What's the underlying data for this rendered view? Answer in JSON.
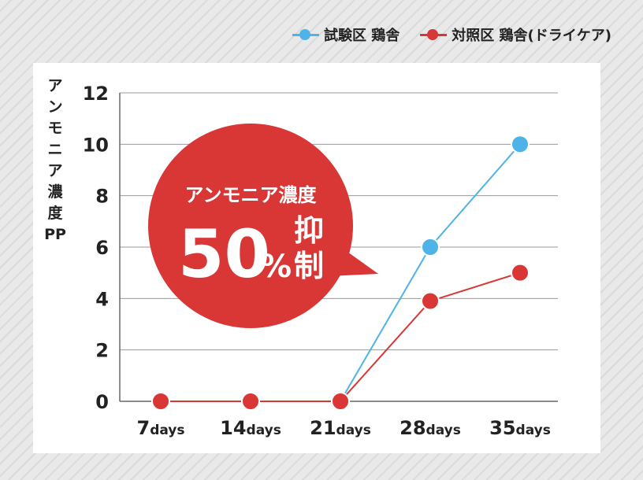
{
  "legend": {
    "test_label": "試験区 鶏舎",
    "control_label": "対照区 鶏舎(ドライケア)"
  },
  "callout": {
    "line1": "アンモニア濃度",
    "big": "50",
    "percent": "%",
    "suffix_top": "抑",
    "suffix_bottom": "制",
    "color": "#d93636"
  },
  "chart_data": {
    "type": "line",
    "categories": [
      {
        "num": "7",
        "unit": "days"
      },
      {
        "num": "14",
        "unit": "days"
      },
      {
        "num": "21",
        "unit": "days"
      },
      {
        "num": "28",
        "unit": "days"
      },
      {
        "num": "35",
        "unit": "days"
      }
    ],
    "ylabel": "アンモニア濃度PP",
    "ylim": [
      0,
      12
    ],
    "yticks": [
      0,
      2,
      4,
      6,
      8,
      10,
      12
    ],
    "grid": true,
    "legend_position": "top-right",
    "series": [
      {
        "name": "試験区 鶏舎",
        "color": "#4fb3e8",
        "values": [
          0,
          0,
          0,
          6,
          10
        ]
      },
      {
        "name": "対照区 鶏舎(ドライケア)",
        "color": "#d93636",
        "values": [
          0,
          0,
          0,
          3.9,
          5
        ]
      }
    ]
  }
}
